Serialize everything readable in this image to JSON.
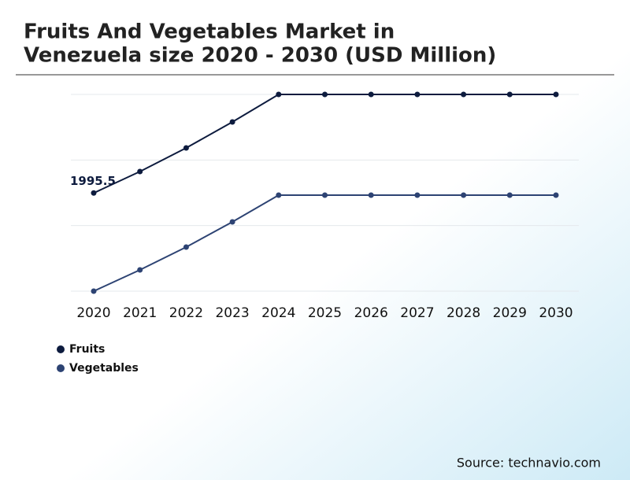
{
  "chart_data": {
    "type": "line",
    "title_lines": [
      "Fruits And Vegetables Market in",
      "Venezuela size 2020 - 2030 (USD Million)"
    ],
    "categories": [
      "2020",
      "2021",
      "2022",
      "2023",
      "2024",
      "2025",
      "2026",
      "2027",
      "2028",
      "2029",
      "2030"
    ],
    "series": [
      {
        "name": "Fruits",
        "color": "#0d1b3e",
        "values": [
          1995.5,
          2432,
          2912,
          3440,
          4000,
          4000,
          4000,
          4000,
          4000,
          4000,
          4000
        ],
        "labeled_points": [
          0
        ]
      },
      {
        "name": "Vegetables",
        "color": "#2d4373",
        "values": [
          0,
          432,
          896,
          1408,
          1952,
          1952,
          1952,
          1952,
          1952,
          1952,
          1952
        ]
      }
    ],
    "ylim": [
      0,
      4000
    ],
    "grid": true,
    "source": "Source: technavio.com"
  }
}
